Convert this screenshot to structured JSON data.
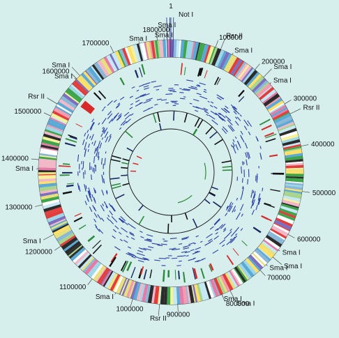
{
  "colors": {
    "background": "#d6eeec",
    "palette": [
      "#f2b8c8",
      "#e8e07a",
      "#f7f29a",
      "#9ed8e8",
      "#7c6fc0",
      "#3fa54a",
      "#e43c3c",
      "#2b2b2b",
      "#a8d48c",
      "#f39bb0",
      "#c4e8f4",
      "#ffe066",
      "#e87aa6",
      "#5aa9d6",
      "#ffffff",
      "#8ab8d8"
    ],
    "green": "#2c8a3c",
    "navy": "#1a2a66",
    "red": "#d82a2a",
    "black": "#111111",
    "blue_line": "#2a3fa8",
    "red_line": "#d82a2a"
  },
  "genome_size": 1830000,
  "labels": {
    "origin": "1",
    "not1": "Not I",
    "positions": [
      {
        "pos": 100000,
        "text": "100000"
      },
      {
        "pos": 200000,
        "text": "200000"
      },
      {
        "pos": 300000,
        "text": "300000"
      },
      {
        "pos": 400000,
        "text": "400000"
      },
      {
        "pos": 500000,
        "text": "500000"
      },
      {
        "pos": 600000,
        "text": "600000"
      },
      {
        "pos": 700000,
        "text": "700000"
      },
      {
        "pos": 800000,
        "text": "800000"
      },
      {
        "pos": 900000,
        "text": "900000"
      },
      {
        "pos": 1000000,
        "text": "1000000"
      },
      {
        "pos": 1100000,
        "text": "1100000"
      },
      {
        "pos": 1200000,
        "text": "1200000"
      },
      {
        "pos": 1300000,
        "text": "1300000"
      },
      {
        "pos": 1400000,
        "text": "1400000"
      },
      {
        "pos": 1500000,
        "text": "1500000"
      },
      {
        "pos": 1600000,
        "text": "1600000"
      },
      {
        "pos": 1700000,
        "text": "1700000"
      },
      {
        "pos": 1800000,
        "text": "1800000"
      }
    ],
    "enzymes": [
      {
        "pos": 1815000,
        "text": "Sma I"
      },
      {
        "pos": 1822000,
        "text": "Sma I"
      },
      {
        "pos": 1760000,
        "text": "Sma I"
      },
      {
        "pos": 112000,
        "text": "Rsr II"
      },
      {
        "pos": 140000,
        "text": "Sma I"
      },
      {
        "pos": 225000,
        "text": "Sma I"
      },
      {
        "pos": 245000,
        "text": "Sma I"
      },
      {
        "pos": 325000,
        "text": "Rsr II"
      },
      {
        "pos": 640000,
        "text": "Sma I"
      },
      {
        "pos": 660000,
        "text": "Sma I"
      },
      {
        "pos": 682000,
        "text": "Sma I"
      },
      {
        "pos": 780000,
        "text": "Sma I"
      },
      {
        "pos": 800000,
        "text": "Sma I"
      },
      {
        "pos": 940000,
        "text": "Rsr II"
      },
      {
        "pos": 1040000,
        "text": "Sma I"
      },
      {
        "pos": 1230000,
        "text": "Sma I"
      },
      {
        "pos": 1380000,
        "text": "Sma I"
      },
      {
        "pos": 1530000,
        "text": "Rsr II"
      },
      {
        "pos": 1598000,
        "text": "Sma I"
      },
      {
        "pos": 1610000,
        "text": "Sma I"
      }
    ]
  }
}
